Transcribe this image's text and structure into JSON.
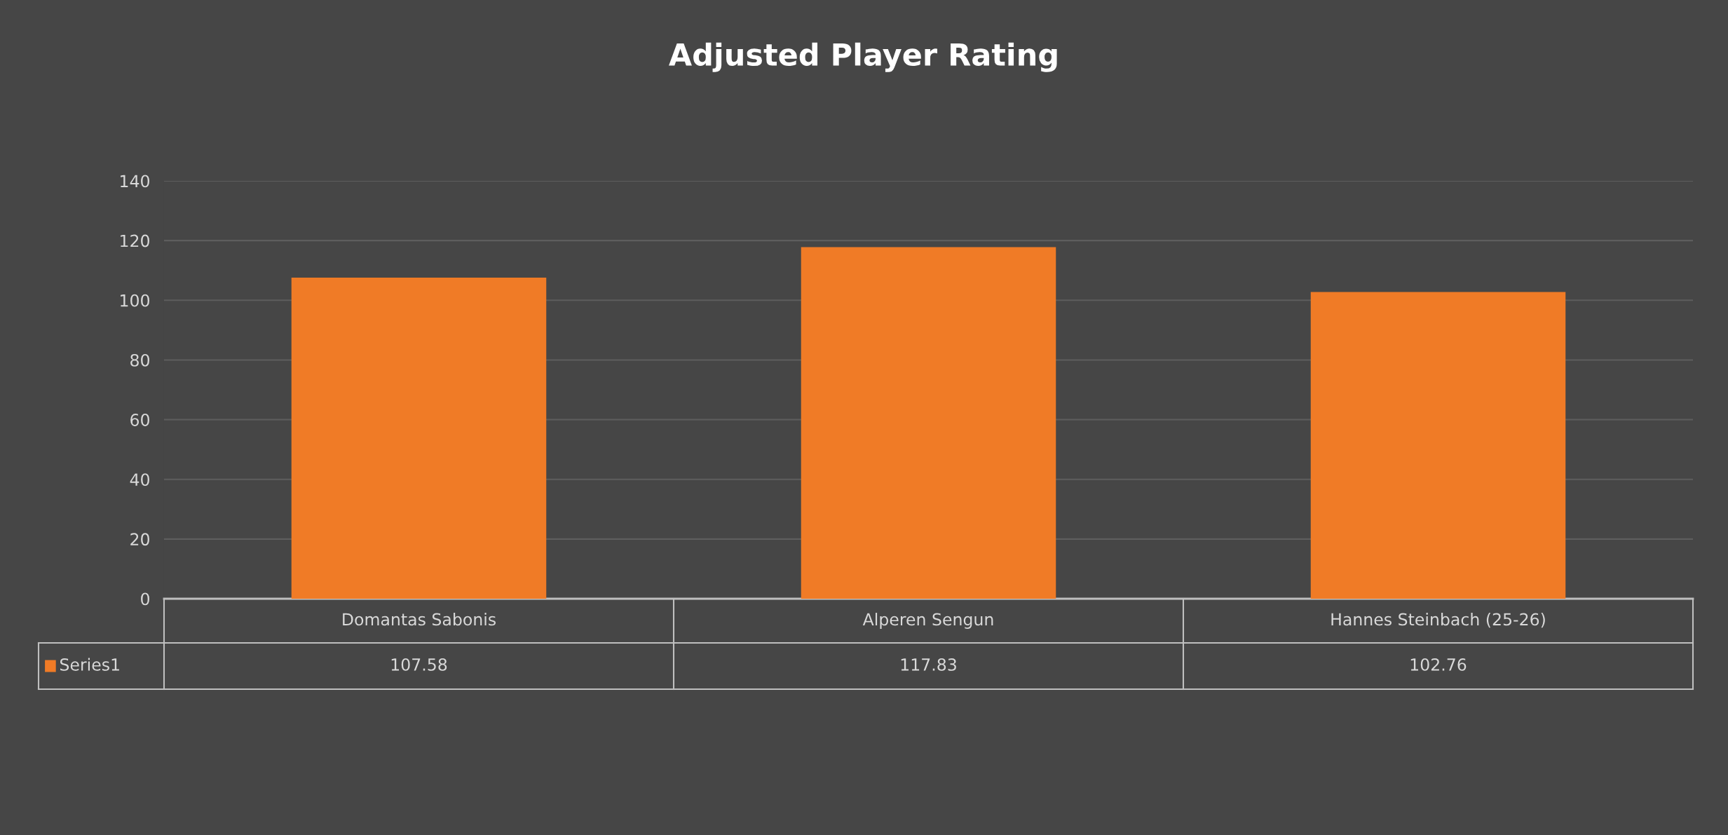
{
  "chart_data": {
    "type": "bar",
    "title": "Adjusted Player Rating",
    "categories": [
      "Domantas Sabonis",
      "Alperen Sengun",
      "Hannes Steinbach (25-26)"
    ],
    "series": [
      {
        "name": "Series1",
        "color": "#f07b26",
        "values": [
          107.58,
          117.83,
          102.76
        ]
      }
    ],
    "ylim": [
      0,
      140
    ],
    "yticks": [
      0,
      20,
      40,
      60,
      80,
      100,
      120,
      140
    ],
    "grid": "y",
    "data_labels": true
  }
}
